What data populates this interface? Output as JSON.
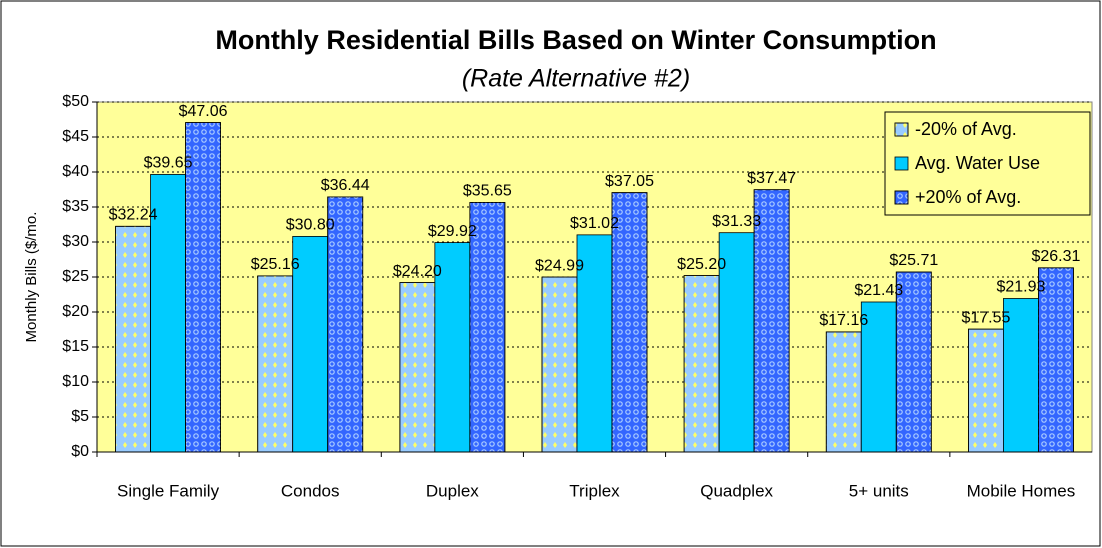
{
  "chart_data": {
    "type": "bar",
    "title": "Monthly Residential Bills Based on Winter Consumption",
    "subtitle": "(Rate Alternative #2)",
    "y_label": "Monthly Bills ($/mo.",
    "categories": [
      "Single Family",
      "Condos",
      "Duplex",
      "Triplex",
      "Quadplex",
      "5+ units",
      "Mobile Homes"
    ],
    "series": [
      {
        "name": "-20% of Avg.",
        "color": "#99ccff",
        "values": [
          32.24,
          25.16,
          24.2,
          24.99,
          25.2,
          17.16,
          17.55
        ],
        "value_labels": [
          "$32.24",
          "$25.16",
          "$24.20",
          "$24.99",
          "$25.20",
          "$17.16",
          "$17.55"
        ]
      },
      {
        "name": "Avg. Water Use",
        "color": "#00ccff",
        "values": [
          39.65,
          30.8,
          29.92,
          31.02,
          31.33,
          21.43,
          21.93
        ],
        "value_labels": [
          "$39.65",
          "$30.80",
          "$29.92",
          "$31.02",
          "$31.33",
          "$21.43",
          "$21.93"
        ]
      },
      {
        "name": "+20% of Avg.",
        "color": "#3366ff",
        "values": [
          47.06,
          36.44,
          35.65,
          37.05,
          37.47,
          25.71,
          26.31
        ],
        "value_labels": [
          "$47.06",
          "$36.44",
          "$35.65",
          "$37.05",
          "$37.47",
          "$25.71",
          "$26.31"
        ]
      }
    ],
    "ylim": [
      0,
      50
    ],
    "yticks": [
      {
        "value": 0,
        "label": "$0"
      },
      {
        "value": 5,
        "label": "$5"
      },
      {
        "value": 10,
        "label": "$10"
      },
      {
        "value": 15,
        "label": "$15"
      },
      {
        "value": 20,
        "label": "$20"
      },
      {
        "value": 25,
        "label": "$25"
      },
      {
        "value": 30,
        "label": "$30"
      },
      {
        "value": 35,
        "label": "$35"
      },
      {
        "value": 40,
        "label": "$40"
      },
      {
        "value": 45,
        "label": "$45"
      },
      {
        "value": 50,
        "label": "$50"
      }
    ],
    "grid": true,
    "legend": "top-right",
    "plot_background": "#ffff99"
  }
}
